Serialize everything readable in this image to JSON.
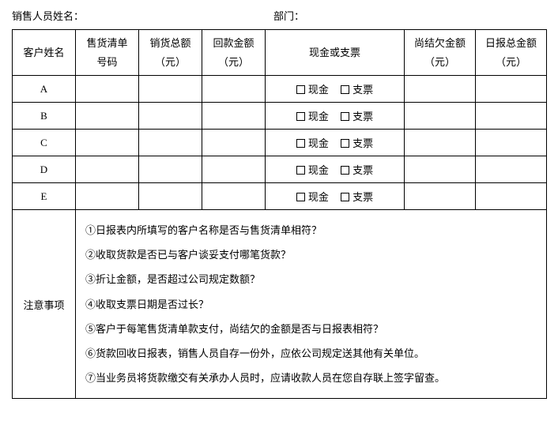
{
  "header": {
    "salesperson_label": "销售人员姓名：",
    "salesperson_value": "",
    "department_label": "部门：",
    "department_value": ""
  },
  "table": {
    "columns": [
      "客户姓名",
      "售货清单号码",
      "销货总额（元）",
      "回款金额（元）",
      "现金或支票",
      "尚结欠金额（元）",
      "日报总金额（元）"
    ],
    "column_line1": [
      "客户姓名",
      "售货清单",
      "销货总额",
      "回款金额",
      "现金或支票",
      "尚结欠金额",
      "日报总金额"
    ],
    "column_line2": [
      "",
      "号码",
      "（元）",
      "（元）",
      "",
      "（元）",
      "（元）"
    ],
    "payment_options": {
      "cash": "现金",
      "cheque": "支票"
    },
    "rows": [
      {
        "customer": "A",
        "order_no": "",
        "sales_total": "",
        "payback": "",
        "cash_checked": false,
        "cheque_checked": false,
        "outstanding": "",
        "daily_total": ""
      },
      {
        "customer": "B",
        "order_no": "",
        "sales_total": "",
        "payback": "",
        "cash_checked": false,
        "cheque_checked": false,
        "outstanding": "",
        "daily_total": ""
      },
      {
        "customer": "C",
        "order_no": "",
        "sales_total": "",
        "payback": "",
        "cash_checked": false,
        "cheque_checked": false,
        "outstanding": "",
        "daily_total": ""
      },
      {
        "customer": "D",
        "order_no": "",
        "sales_total": "",
        "payback": "",
        "cash_checked": false,
        "cheque_checked": false,
        "outstanding": "",
        "daily_total": ""
      },
      {
        "customer": "E",
        "order_no": "",
        "sales_total": "",
        "payback": "",
        "cash_checked": false,
        "cheque_checked": false,
        "outstanding": "",
        "daily_total": ""
      }
    ]
  },
  "notes": {
    "label": "注意事项",
    "items": [
      "①日报表内所填写的客户名称是否与售货清单相符？",
      "②收取货款是否已与客户谈妥支付哪笔货款？",
      "③折让金额，是否超过公司规定数额？",
      "④收取支票日期是否过长？",
      "⑤客户于每笔售货清单款支付，尚结欠的金额是否与日报表相符？",
      "⑥货款回收日报表，销售人员自存一份外，应依公司规定送其他有关单位。",
      "⑦当业务员将货款缴交有关承办人员时，应请收款人员在您自存联上签字留查。"
    ]
  },
  "colors": {
    "background": "#ffffff",
    "text": "#000000",
    "border": "#000000"
  }
}
